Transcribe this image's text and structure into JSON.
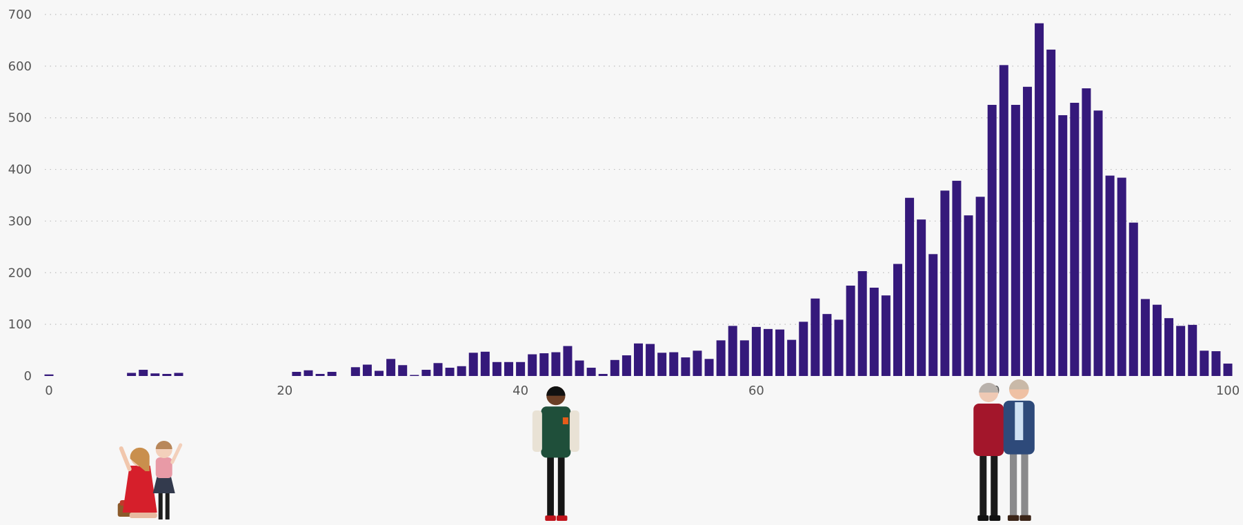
{
  "chart_data": {
    "type": "bar",
    "xlabel": "",
    "ylabel": "",
    "xlim": [
      0,
      100
    ],
    "ylim": [
      0,
      700
    ],
    "x_ticks": [
      0,
      20,
      40,
      60,
      80,
      100
    ],
    "y_ticks": [
      0,
      100,
      200,
      300,
      400,
      500,
      600,
      700
    ],
    "grid": "horizontal dotted",
    "bar_color": "#35197b",
    "x": [
      0,
      1,
      2,
      3,
      4,
      5,
      6,
      7,
      8,
      9,
      10,
      11,
      12,
      13,
      14,
      15,
      16,
      17,
      18,
      19,
      20,
      21,
      22,
      23,
      24,
      25,
      26,
      27,
      28,
      29,
      30,
      31,
      32,
      33,
      34,
      35,
      36,
      37,
      38,
      39,
      40,
      41,
      42,
      43,
      44,
      45,
      46,
      47,
      48,
      49,
      50,
      51,
      52,
      53,
      54,
      55,
      56,
      57,
      58,
      59,
      60,
      61,
      62,
      63,
      64,
      65,
      66,
      67,
      68,
      69,
      70,
      71,
      72,
      73,
      74,
      75,
      76,
      77,
      78,
      79,
      80,
      81,
      82,
      83,
      84,
      85,
      86,
      87,
      88,
      89,
      90,
      91,
      92,
      93,
      94,
      95,
      96,
      97,
      98,
      99,
      100
    ],
    "values": [
      3,
      0,
      0,
      0,
      0,
      0,
      0,
      6,
      12,
      5,
      4,
      6,
      0,
      0,
      0,
      0,
      0,
      0,
      0,
      0,
      0,
      8,
      11,
      4,
      8,
      0,
      17,
      22,
      10,
      33,
      21,
      2,
      12,
      25,
      16,
      19,
      45,
      47,
      27,
      27,
      27,
      42,
      44,
      46,
      58,
      30,
      16,
      4,
      31,
      40,
      63,
      62,
      45,
      46,
      36,
      49,
      33,
      69,
      97,
      69,
      95,
      91,
      90,
      70,
      105,
      150,
      120,
      109,
      175,
      203,
      171,
      156,
      217,
      345,
      303,
      236,
      359,
      378,
      311,
      347,
      525,
      602,
      525,
      560,
      683,
      632,
      505,
      529,
      557,
      514,
      388,
      384,
      297,
      149,
      138,
      112,
      97,
      99,
      49,
      48,
      24
    ]
  },
  "figures": [
    {
      "name": "children-figure",
      "icon": "children-figure-icon",
      "x": 8
    },
    {
      "name": "young-adult-figure",
      "icon": "young-adult-figure-icon",
      "x": 43
    },
    {
      "name": "elderly-couple-figure",
      "icon": "elderly-couple-figure-icon",
      "x": 81
    }
  ]
}
